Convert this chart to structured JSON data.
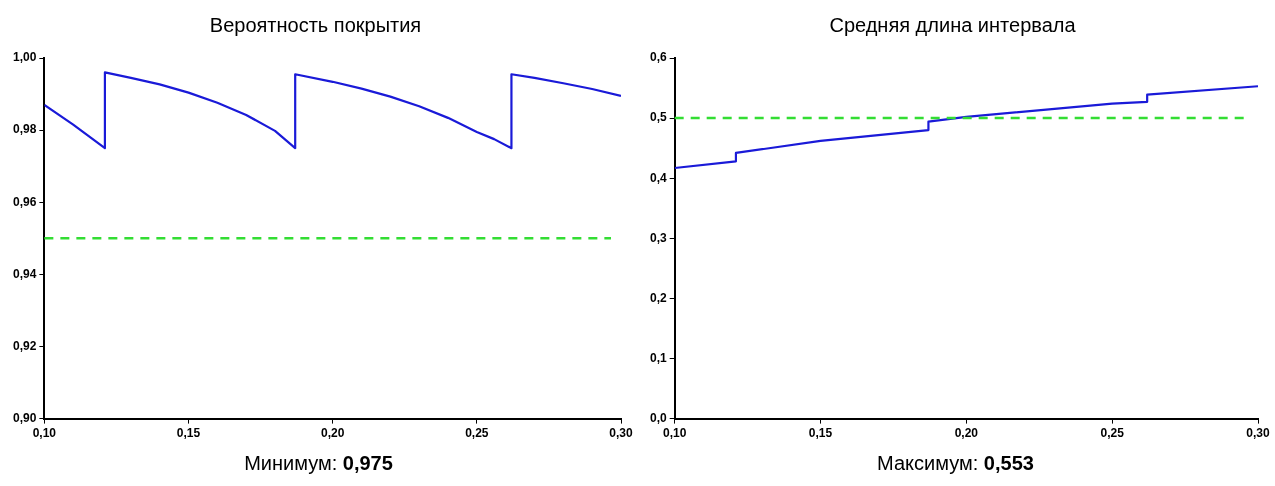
{
  "chart_data": [
    {
      "type": "line",
      "title": "Вероятность покрытия",
      "x": [
        0.1,
        0.11,
        0.121,
        0.121,
        0.13,
        0.14,
        0.15,
        0.16,
        0.17,
        0.18,
        0.187,
        0.187,
        0.2,
        0.21,
        0.22,
        0.23,
        0.24,
        0.25,
        0.256,
        0.262,
        0.262,
        0.27,
        0.28,
        0.29,
        0.3
      ],
      "series": [
        {
          "color": "#1a1ad8",
          "values": [
            0.987,
            0.9815,
            0.975,
            0.996,
            0.9945,
            0.9927,
            0.9904,
            0.9876,
            0.9842,
            0.9798,
            0.975,
            0.9955,
            0.9934,
            0.9915,
            0.9893,
            0.9866,
            0.9834,
            0.9795,
            0.9775,
            0.975,
            0.9955,
            0.9945,
            0.993,
            0.9914,
            0.9895
          ]
        }
      ],
      "xlim": [
        0.1,
        0.3
      ],
      "xticks": [
        {
          "value": 0.1,
          "label": "0,10"
        },
        {
          "value": 0.15,
          "label": "0,15"
        },
        {
          "value": 0.2,
          "label": "0,20"
        },
        {
          "value": 0.25,
          "label": "0,25"
        },
        {
          "value": 0.3,
          "label": "0,30"
        }
      ],
      "ylim": [
        0.9,
        1.0
      ],
      "yticks": [
        {
          "value": 0.9,
          "label": "0,90"
        },
        {
          "value": 0.92,
          "label": "0,92"
        },
        {
          "value": 0.94,
          "label": "0,94"
        },
        {
          "value": 0.96,
          "label": "0,96"
        },
        {
          "value": 0.98,
          "label": "0,98"
        },
        {
          "value": 1.0,
          "label": "1,00"
        }
      ],
      "ref_lines": [
        {
          "axis": "y",
          "value": 0.95,
          "color": "#33dd33",
          "line_style": "dashed"
        }
      ],
      "grid": false,
      "legend": false,
      "marker": "none",
      "annotations": [
        "Минимум: 0,975"
      ]
    },
    {
      "type": "line",
      "title": "Средняя длина интервала",
      "x": [
        0.1,
        0.121,
        0.121,
        0.15,
        0.187,
        0.187,
        0.2,
        0.25,
        0.262,
        0.262,
        0.3
      ],
      "series": [
        {
          "color": "#1a1ad8",
          "values": [
            0.417,
            0.428,
            0.442,
            0.462,
            0.48,
            0.494,
            0.502,
            0.524,
            0.527,
            0.539,
            0.553
          ]
        }
      ],
      "xlim": [
        0.1,
        0.3
      ],
      "xticks": [
        {
          "value": 0.1,
          "label": "0,10"
        },
        {
          "value": 0.15,
          "label": "0,15"
        },
        {
          "value": 0.2,
          "label": "0,20"
        },
        {
          "value": 0.25,
          "label": "0,25"
        },
        {
          "value": 0.3,
          "label": "0,30"
        }
      ],
      "ylim": [
        0,
        0.6
      ],
      "yticks": [
        {
          "value": 0,
          "label": "0,0"
        },
        {
          "value": 0.1,
          "label": "0,1"
        },
        {
          "value": 0.2,
          "label": "0,2"
        },
        {
          "value": 0.3,
          "label": "0,3"
        },
        {
          "value": 0.4,
          "label": "0,4"
        },
        {
          "value": 0.5,
          "label": "0,5"
        },
        {
          "value": 0.6,
          "label": "0,6"
        }
      ],
      "ref_lines": [
        {
          "axis": "y",
          "value": 0.5,
          "color": "#33dd33",
          "line_style": "dashed"
        }
      ],
      "grid": false,
      "legend": false,
      "marker": "none",
      "annotations": [
        "Максимум: 0,553"
      ]
    }
  ]
}
